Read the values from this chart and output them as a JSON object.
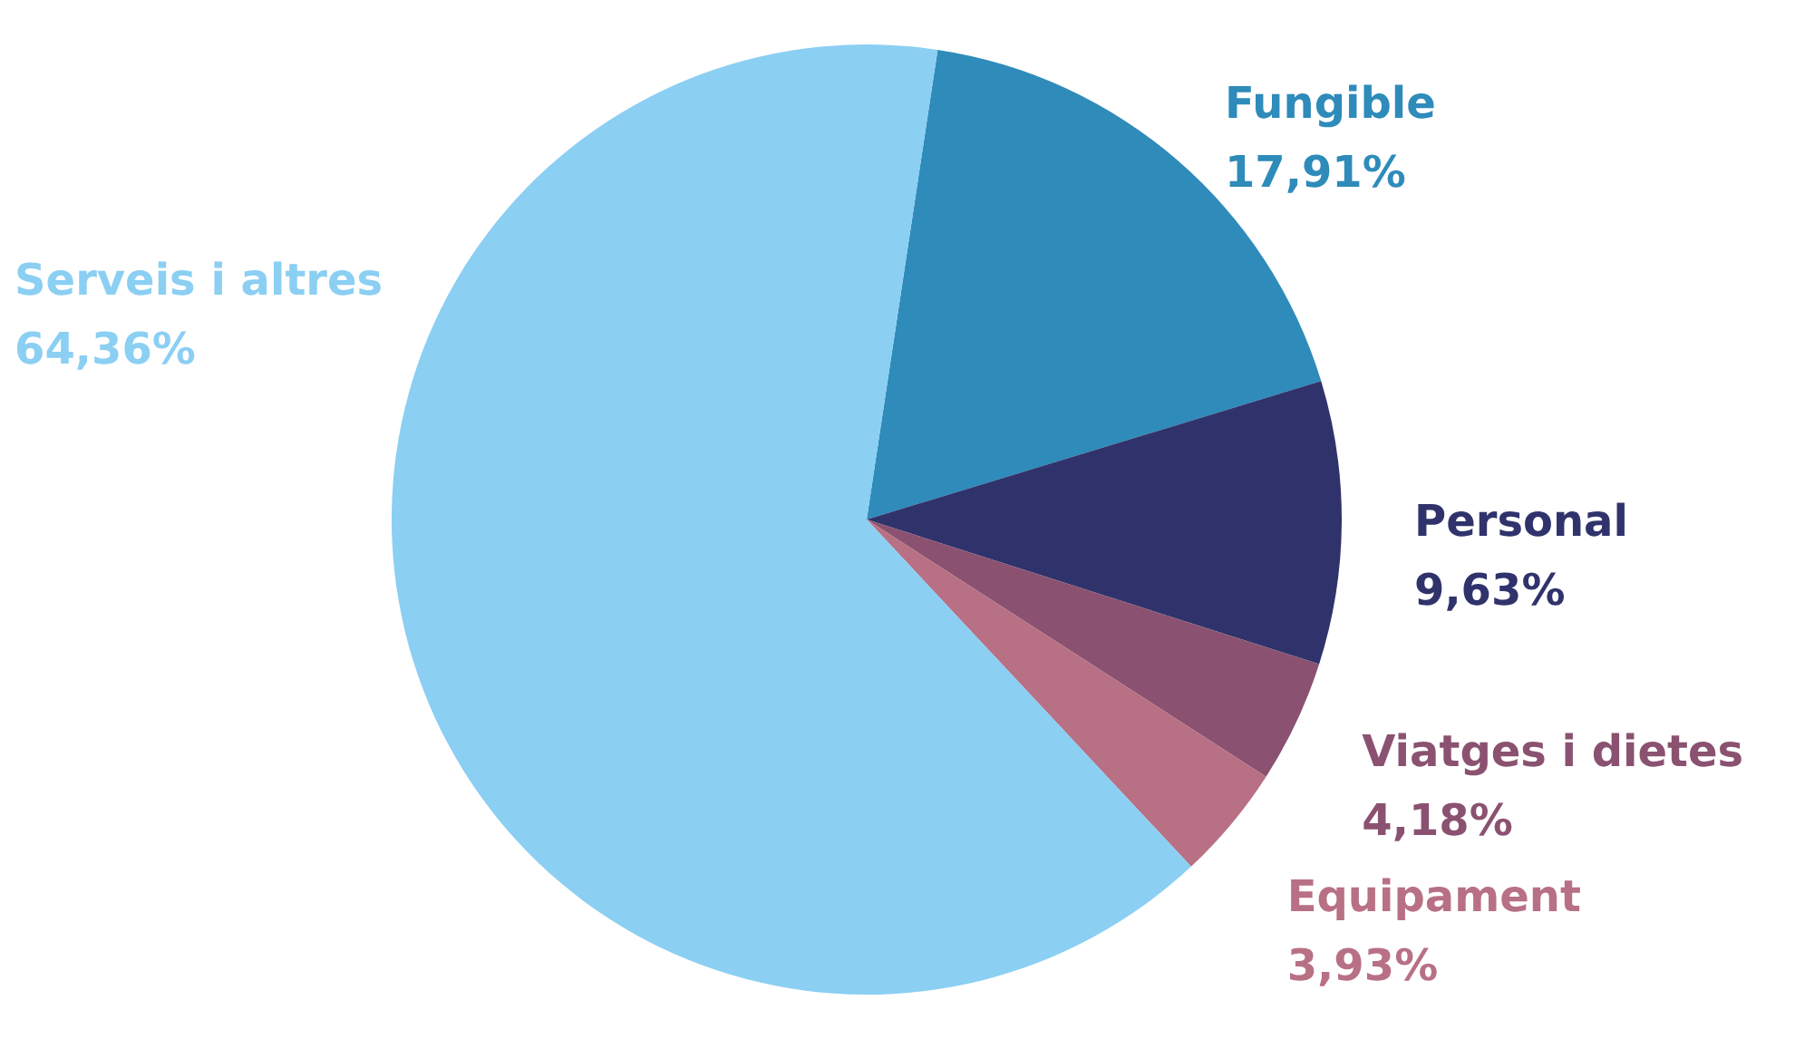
{
  "chart_data": {
    "type": "pie",
    "categories": [
      "Fungible",
      "Personal",
      "Viatges i dietes",
      "Equipament",
      "Serveis i altres"
    ],
    "values": [
      17.91,
      9.63,
      4.18,
      3.93,
      64.36
    ],
    "value_labels": [
      "17,91%",
      "9,63%",
      "4,18%",
      "3,93%",
      "64,36%"
    ],
    "colors": [
      "#2e8bba",
      "#30336b",
      "#8a5270",
      "#b87085",
      "#8bcff3"
    ]
  }
}
